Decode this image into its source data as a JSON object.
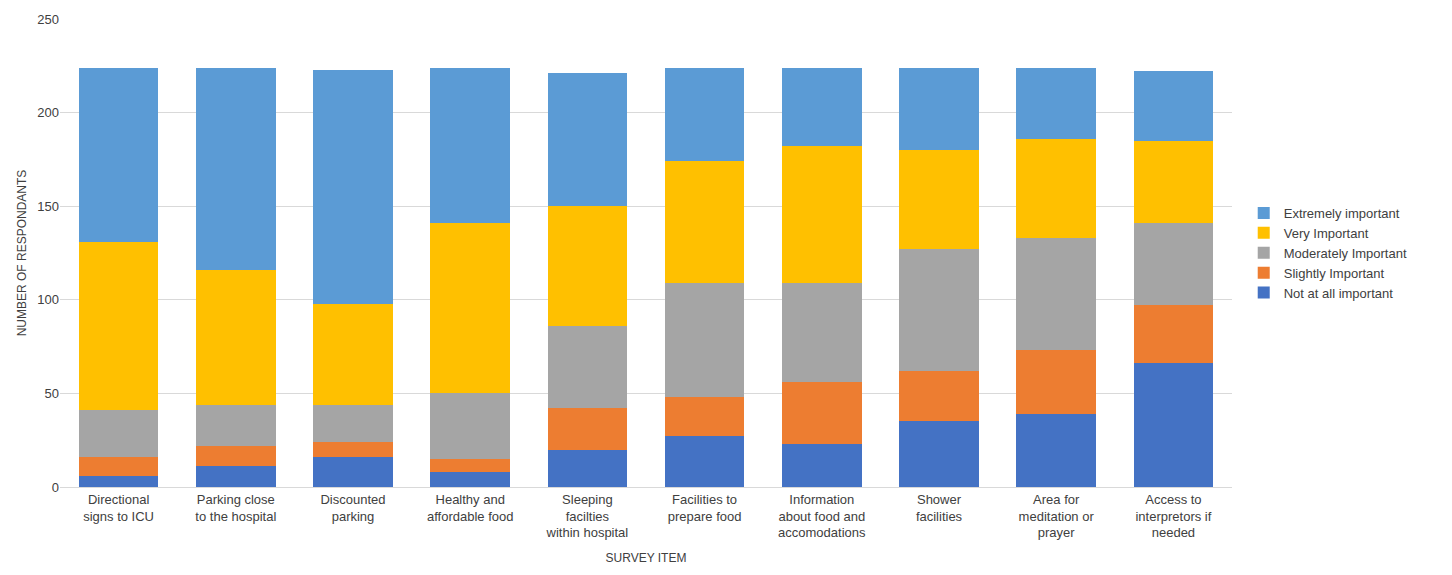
{
  "chart_data": {
    "type": "bar",
    "stacked": true,
    "grid": true,
    "legend": "right",
    "x_label": "SURVEY ITEM",
    "y_label": "NUMBER OF RESPONDANTS",
    "categories": [
      "Directional signs to ICU",
      "Parking close to the hospital",
      "Discounted parking",
      "Healthy and affordable food",
      "Sleeping facilties within hospital",
      "Facilities to prepare food",
      "Information about food and accomodations",
      "Shower facilities",
      "Area for meditation or prayer",
      "Access to interpretors if needed"
    ],
    "series": [
      {
        "name": "Not at all important",
        "color": "#4472c4",
        "values": [
          6,
          11,
          16,
          8,
          20,
          27,
          23,
          35,
          39,
          66
        ]
      },
      {
        "name": "Slightly Important",
        "color": "#ed7d31",
        "values": [
          10,
          11,
          8,
          7,
          22,
          21,
          33,
          27,
          34,
          31
        ]
      },
      {
        "name": "Moderately Important",
        "color": "#a5a5a5",
        "values": [
          25,
          22,
          20,
          35,
          44,
          61,
          53,
          65,
          60,
          44
        ]
      },
      {
        "name": "Very Important",
        "color": "#ffc000",
        "values": [
          90,
          72,
          54,
          91,
          64,
          65,
          73,
          53,
          53,
          44
        ]
      },
      {
        "name": "Extremely important",
        "color": "#5b9bd5",
        "values": [
          93,
          108,
          125,
          83,
          71,
          50,
          42,
          44,
          38,
          37
        ]
      }
    ],
    "ylim": [
      0,
      250
    ],
    "yticks": [
      0,
      50,
      100,
      150,
      200,
      250
    ]
  }
}
